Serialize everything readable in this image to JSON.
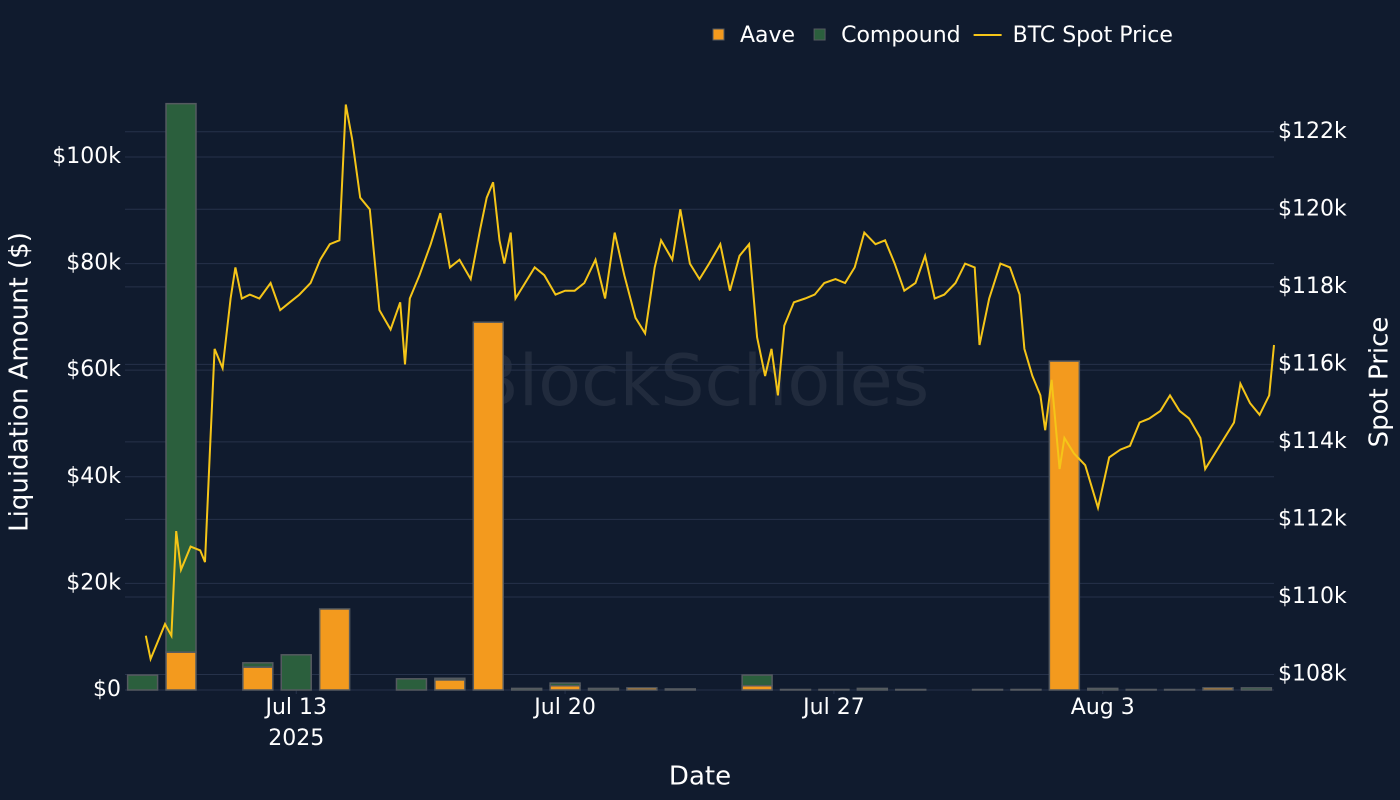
{
  "chart_data": {
    "type": "bar",
    "barmode": "stack",
    "xlabel": "Date",
    "ylabel": "Liquidation Amount ($)",
    "y2label": "Spot Price",
    "watermark": "BlockScholes",
    "categories": [
      "2025-07-09",
      "2025-07-10",
      "2025-07-11",
      "2025-07-12",
      "2025-07-13",
      "2025-07-14",
      "2025-07-15",
      "2025-07-16",
      "2025-07-17",
      "2025-07-18",
      "2025-07-19",
      "2025-07-20",
      "2025-07-21",
      "2025-07-22",
      "2025-07-23",
      "2025-07-24",
      "2025-07-25",
      "2025-07-26",
      "2025-07-27",
      "2025-07-28",
      "2025-07-29",
      "2025-07-30",
      "2025-07-31",
      "2025-08-01",
      "2025-08-02",
      "2025-08-03",
      "2025-08-04",
      "2025-08-05",
      "2025-08-06",
      "2025-08-07"
    ],
    "series": [
      {
        "name": "Aave",
        "type": "bar",
        "color": "#f39a1e",
        "values": [
          0,
          7100,
          0,
          4300,
          0,
          15200,
          0,
          0,
          1900,
          69000,
          0,
          800,
          0,
          400,
          0,
          0,
          800,
          0,
          0,
          0,
          0,
          0,
          0,
          0,
          61700,
          0,
          0,
          0,
          400,
          0
        ]
      },
      {
        "name": "Compound",
        "type": "bar",
        "color": "#2b5f3d",
        "values": [
          2800,
          102900,
          0,
          800,
          6600,
          0,
          0,
          2100,
          300,
          0,
          300,
          500,
          300,
          0,
          200,
          0,
          2000,
          100,
          100,
          300,
          100,
          0,
          100,
          100,
          0,
          300,
          100,
          100,
          0,
          400
        ]
      },
      {
        "name": "BTC Spot Price",
        "type": "line",
        "axis": "y2",
        "color": "#f5c518",
        "x": [
          "2025-07-09T02:00",
          "2025-07-09T05:00",
          "2025-07-09T10:00",
          "2025-07-09T14:00",
          "2025-07-09T18:00",
          "2025-07-09T21:00",
          "2025-07-10T00:00",
          "2025-07-10T06:00",
          "2025-07-10T12:00",
          "2025-07-10T15:00",
          "2025-07-10T18:00",
          "2025-07-10T21:00",
          "2025-07-11T02:00",
          "2025-07-11T07:00",
          "2025-07-11T10:00",
          "2025-07-11T14:00",
          "2025-07-11T19:00",
          "2025-07-12T01:00",
          "2025-07-12T08:00",
          "2025-07-12T14:00",
          "2025-07-12T20:00",
          "2025-07-13T02:00",
          "2025-07-13T09:00",
          "2025-07-13T15:00",
          "2025-07-13T21:00",
          "2025-07-14T03:00",
          "2025-07-14T07:00",
          "2025-07-14T11:00",
          "2025-07-14T16:00",
          "2025-07-14T22:00",
          "2025-07-15T04:00",
          "2025-07-15T11:00",
          "2025-07-15T17:00",
          "2025-07-15T20:00",
          "2025-07-15T23:00",
          "2025-07-16T05:00",
          "2025-07-16T12:00",
          "2025-07-16T18:00",
          "2025-07-17T00:00",
          "2025-07-17T06:00",
          "2025-07-17T13:00",
          "2025-07-17T19:00",
          "2025-07-17T23:00",
          "2025-07-18T03:00",
          "2025-07-18T07:00",
          "2025-07-18T10:00",
          "2025-07-18T14:00",
          "2025-07-18T17:00",
          "2025-07-18T23:00",
          "2025-07-19T05:00",
          "2025-07-19T11:00",
          "2025-07-19T18:00",
          "2025-07-20T00:00",
          "2025-07-20T06:00",
          "2025-07-20T12:00",
          "2025-07-20T19:00",
          "2025-07-21T01:00",
          "2025-07-21T07:00",
          "2025-07-21T13:00",
          "2025-07-21T20:00",
          "2025-07-22T02:00",
          "2025-07-22T08:00",
          "2025-07-22T12:00",
          "2025-07-22T19:00",
          "2025-07-23T00:00",
          "2025-07-23T06:00",
          "2025-07-23T12:00",
          "2025-07-23T18:00",
          "2025-07-24T01:00",
          "2025-07-24T07:00",
          "2025-07-24T13:00",
          "2025-07-24T19:00",
          "2025-07-25T00:00",
          "2025-07-25T05:00",
          "2025-07-25T09:00",
          "2025-07-25T13:00",
          "2025-07-25T17:00",
          "2025-07-25T23:00",
          "2025-07-26T06:00",
          "2025-07-26T12:00",
          "2025-07-26T18:00",
          "2025-07-27T01:00",
          "2025-07-27T07:00",
          "2025-07-27T13:00",
          "2025-07-27T19:00",
          "2025-07-28T02:00",
          "2025-07-28T08:00",
          "2025-07-28T14:00",
          "2025-07-28T20:00",
          "2025-07-29T03:00",
          "2025-07-29T09:00",
          "2025-07-29T15:00",
          "2025-07-29T21:00",
          "2025-07-30T04:00",
          "2025-07-30T10:00",
          "2025-07-30T16:00",
          "2025-07-30T19:00",
          "2025-07-31T01:00",
          "2025-07-31T08:00",
          "2025-07-31T14:00",
          "2025-07-31T20:00",
          "2025-07-31T23:00",
          "2025-08-01T04:00",
          "2025-08-01T09:00",
          "2025-08-01T12:00",
          "2025-08-01T16:00",
          "2025-08-01T21:00",
          "2025-08-02T00:00",
          "2025-08-02T06:00",
          "2025-08-02T13:00",
          "2025-08-02T21:00",
          "2025-08-03T04:00",
          "2025-08-03T11:00",
          "2025-08-03T17:00",
          "2025-08-03T23:00",
          "2025-08-04T05:00",
          "2025-08-04T12:00",
          "2025-08-04T18:00",
          "2025-08-05T00:00",
          "2025-08-05T06:00",
          "2025-08-05T13:00",
          "2025-08-05T16:00",
          "2025-08-05T22:00",
          "2025-08-06T04:00",
          "2025-08-06T10:00",
          "2025-08-06T14:00",
          "2025-08-06T20:00",
          "2025-08-07T02:00",
          "2025-08-07T08:00",
          "2025-08-07T11:00"
        ],
        "values": [
          109000,
          108400,
          108900,
          109300,
          109000,
          111700,
          110700,
          111300,
          111200,
          110900,
          113700,
          116400,
          115900,
          117700,
          118500,
          117700,
          117800,
          117700,
          118100,
          117400,
          117600,
          117800,
          118100,
          118700,
          119100,
          119200,
          122700,
          121800,
          120300,
          120000,
          117400,
          116900,
          117600,
          116000,
          117700,
          118300,
          119100,
          119900,
          118500,
          118700,
          118200,
          119500,
          120300,
          120700,
          119200,
          118600,
          119400,
          117700,
          118100,
          118500,
          118300,
          117800,
          117900,
          117900,
          118100,
          118700,
          117700,
          119400,
          118300,
          117200,
          116800,
          118500,
          119200,
          118700,
          120000,
          118600,
          118200,
          118600,
          119100,
          117900,
          118800,
          119100,
          116700,
          115700,
          116400,
          115200,
          117000,
          117600,
          117700,
          117800,
          118100,
          118200,
          118100,
          118500,
          119400,
          119100,
          119200,
          118600,
          117900,
          118100,
          118800,
          117700,
          117800,
          118100,
          118600,
          118500,
          116500,
          117700,
          118600,
          118500,
          117800,
          116400,
          115700,
          115200,
          114300,
          115600,
          113300,
          114100,
          113700,
          113400,
          112300,
          113600,
          113800,
          113900,
          114500,
          114600,
          114800,
          115200,
          114800,
          114600,
          114100,
          113300,
          113700,
          114100,
          114500,
          115500,
          115000,
          114700,
          115200,
          116500
        ]
      }
    ],
    "xlim": [
      "2025-07-08T13:00",
      "2025-08-07T11:00"
    ],
    "xticks": [
      {
        "value": "2025-07-13",
        "label": "Jul 13"
      },
      {
        "value": "2025-07-20",
        "label": "Jul 20"
      },
      {
        "value": "2025-07-27",
        "label": "Jul 27"
      },
      {
        "value": "2025-08-03",
        "label": "Aug 3"
      }
    ],
    "xtick_year": "2025",
    "ylim": [
      0,
      112000
    ],
    "yticks": [
      {
        "value": 0,
        "label": "$0"
      },
      {
        "value": 20000,
        "label": "$20k"
      },
      {
        "value": 40000,
        "label": "$40k"
      },
      {
        "value": 60000,
        "label": "$60k"
      },
      {
        "value": 80000,
        "label": "$80k"
      },
      {
        "value": 100000,
        "label": "$100k"
      }
    ],
    "y2lim": [
      107600,
      123000
    ],
    "y2ticks": [
      {
        "value": 108000,
        "label": "$108k"
      },
      {
        "value": 110000,
        "label": "$110k"
      },
      {
        "value": 112000,
        "label": "$112k"
      },
      {
        "value": 114000,
        "label": "$114k"
      },
      {
        "value": 116000,
        "label": "$116k"
      },
      {
        "value": 118000,
        "label": "$118k"
      },
      {
        "value": 120000,
        "label": "$120k"
      },
      {
        "value": 122000,
        "label": "$122k"
      }
    ],
    "grid": true,
    "legend": "top"
  }
}
